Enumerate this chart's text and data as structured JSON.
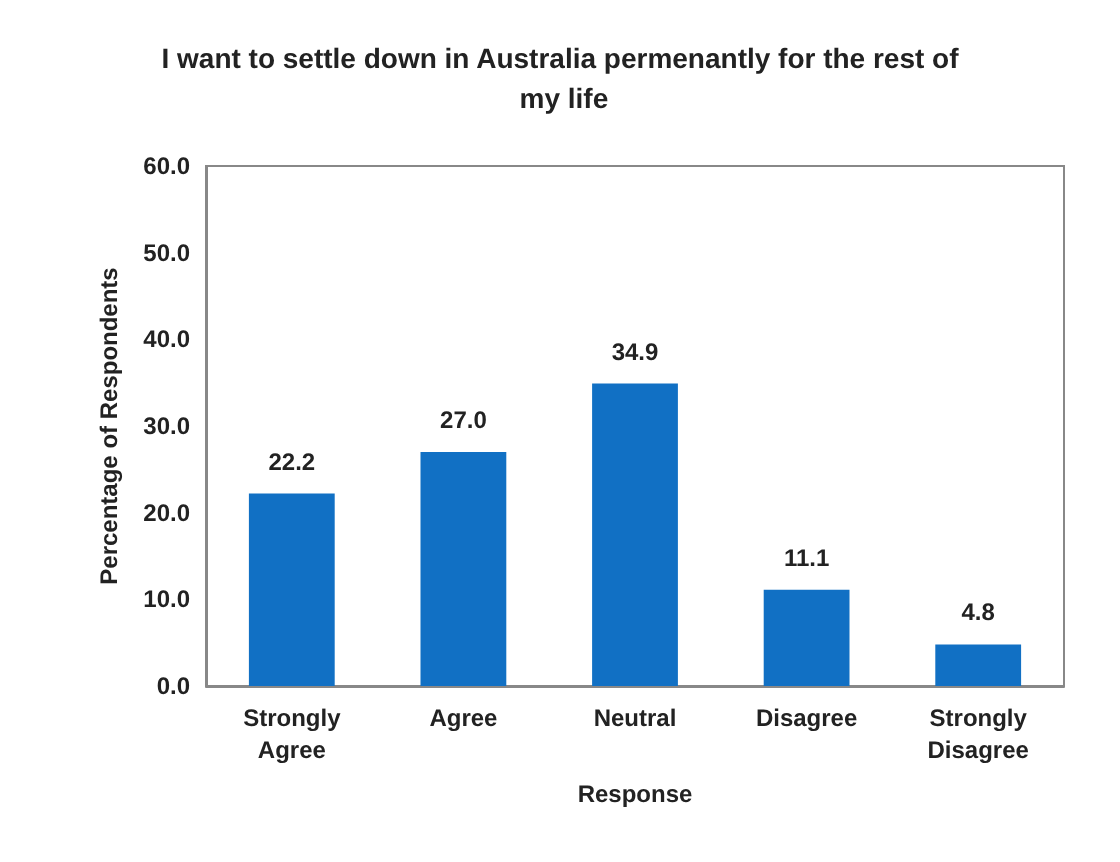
{
  "chart_data": {
    "type": "bar",
    "title": "I want to settle down in Australia permenantly for the rest of my life",
    "xlabel": "Response",
    "ylabel": "Percentage of Respondents",
    "categories": [
      "Strongly\nAgree",
      "Agree",
      "Neutral",
      "Disagree",
      "Strongly\nDisagree"
    ],
    "values": [
      22.2,
      27.0,
      34.9,
      11.1,
      4.8
    ],
    "value_labels": [
      "22.2",
      "27.0",
      "34.9",
      "11.1",
      "4.8"
    ],
    "color": "#1170c4",
    "ylim": [
      0,
      60
    ],
    "yticks": [
      {
        "value": 0,
        "label": "0.0"
      },
      {
        "value": 10,
        "label": "10.0"
      },
      {
        "value": 20,
        "label": "20.0"
      },
      {
        "value": 30,
        "label": "30.0"
      },
      {
        "value": 40,
        "label": "40.0"
      },
      {
        "value": 50,
        "label": "50.0"
      },
      {
        "value": 60,
        "label": "60.0"
      }
    ],
    "grid": false
  }
}
